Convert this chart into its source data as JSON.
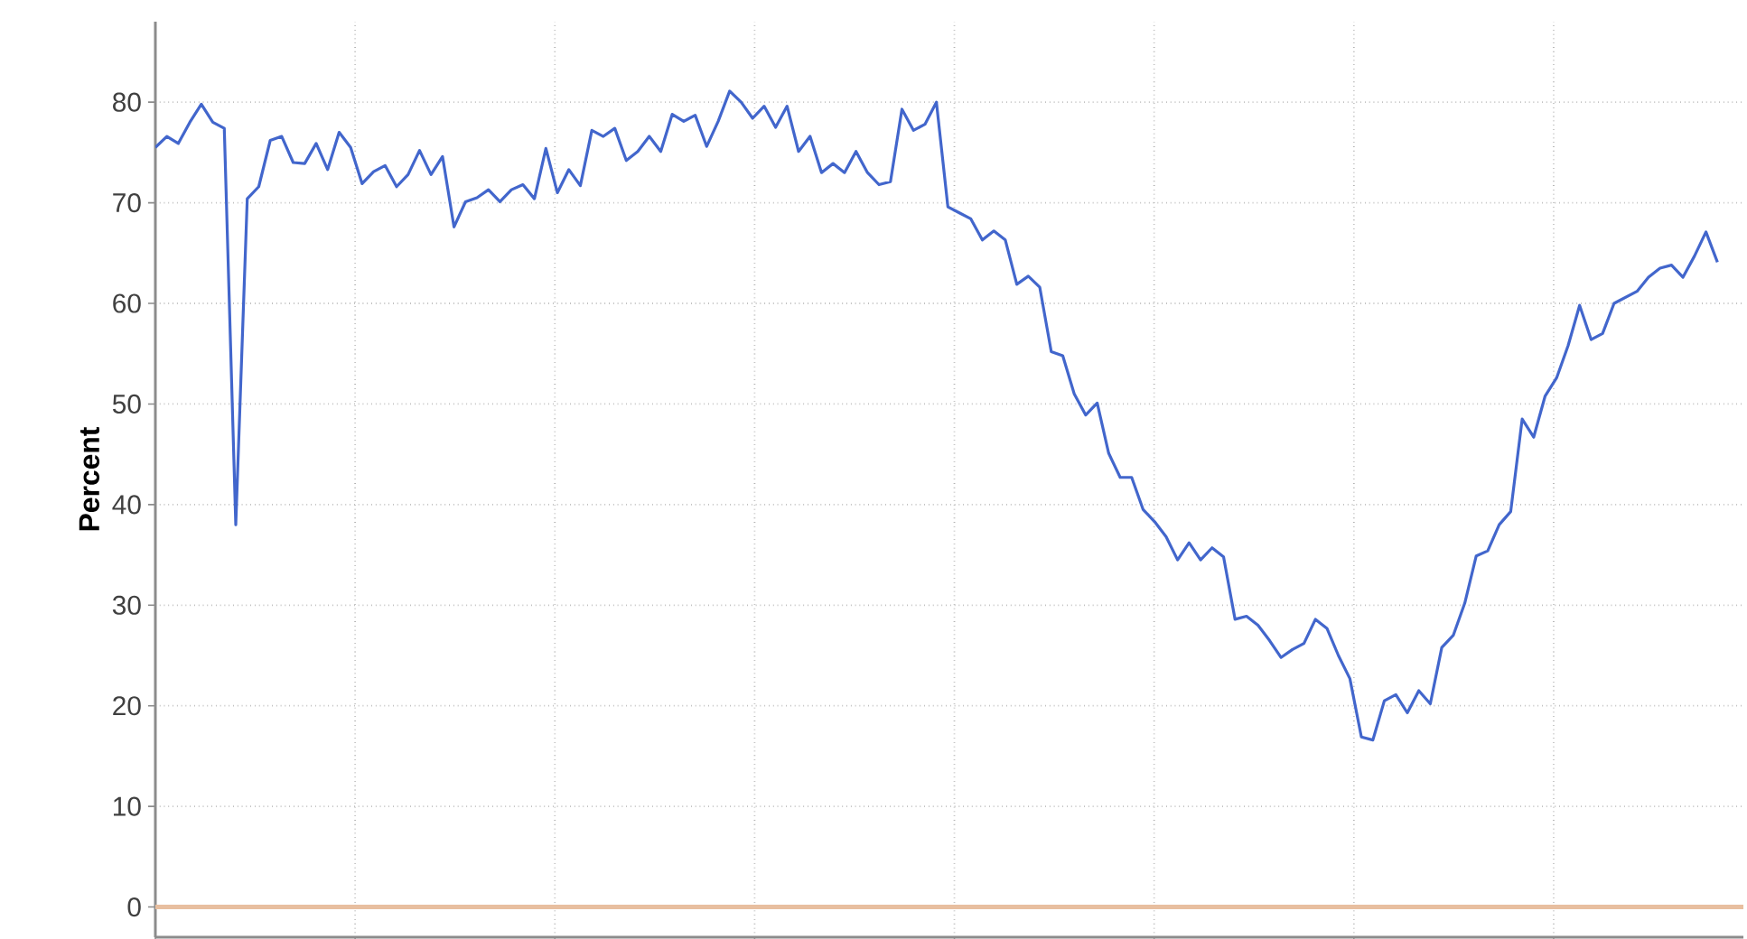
{
  "chart_data": {
    "type": "line",
    "ylabel": "Percent",
    "categories": [
      null,
      null,
      null,
      null,
      null,
      null,
      null,
      null,
      null,
      null,
      null,
      null,
      null,
      null,
      null,
      null,
      null,
      null,
      null,
      null,
      null,
      null,
      null,
      null,
      null,
      null,
      null,
      null,
      null,
      null,
      null,
      null,
      null,
      null,
      null,
      null,
      null,
      null,
      null,
      null,
      null,
      null,
      null,
      null,
      null,
      null,
      null,
      null,
      null,
      null,
      null,
      null,
      null,
      null,
      null,
      null,
      null,
      null,
      null,
      null,
      null,
      null,
      null,
      null,
      null,
      null,
      null,
      null,
      null,
      null,
      null,
      null,
      null,
      null,
      null,
      null,
      null,
      null,
      null,
      null,
      null,
      null,
      null,
      null,
      null,
      null,
      null,
      null,
      null,
      null,
      null,
      null,
      null,
      null,
      null,
      null,
      null,
      null,
      null,
      null,
      null,
      null,
      null,
      null,
      null,
      null,
      null,
      null,
      null,
      null,
      null,
      null,
      null,
      null,
      null,
      null,
      null,
      null,
      null,
      null,
      null,
      null,
      null,
      null,
      null,
      null,
      null,
      null,
      null,
      null,
      null,
      null,
      null,
      null,
      null,
      null,
      null
    ],
    "series": [
      {
        "color": "#4266cc",
        "values": [
          75.5,
          76.6,
          75.9,
          78,
          79.8,
          78,
          77.4,
          38,
          70.4,
          71.6,
          76.2,
          76.6,
          74,
          73.9,
          75.9,
          73.3,
          77,
          75.5,
          71.9,
          73.1,
          73.7,
          71.6,
          72.8,
          75.2,
          72.8,
          74.6,
          67.6,
          70.1,
          70.5,
          71.3,
          70.1,
          71.3,
          71.8,
          70.4,
          75.4,
          71,
          73.3,
          71.7,
          77.2,
          76.6,
          77.4,
          74.2,
          75.1,
          76.6,
          75.1,
          78.8,
          78.1,
          78.7,
          75.6,
          78.1,
          81.1,
          80,
          78.4,
          79.6,
          77.5,
          79.6,
          75.1,
          76.6,
          73,
          73.9,
          73,
          75.1,
          73,
          71.8,
          72.1,
          79.3,
          77.2,
          77.8,
          80,
          69.6,
          69,
          68.4,
          66.3,
          67.2,
          66.3,
          61.9,
          62.7,
          61.6,
          55.2,
          54.8,
          51,
          48.9,
          50.1,
          45.1,
          42.7,
          42.7,
          39.5,
          38.3,
          36.8,
          34.5,
          36.2,
          34.5,
          35.7,
          34.8,
          28.6,
          28.9,
          28,
          26.5,
          24.8,
          25.6,
          26.2,
          28.6,
          27.7,
          25,
          22.7,
          16.9,
          16.6,
          20.5,
          21.1,
          19.3,
          21.5,
          20.2,
          25.8,
          27,
          30.2,
          34.9,
          35.4,
          38,
          39.3,
          48.5,
          46.7,
          50.8,
          52.6,
          55.8,
          59.8,
          56.4,
          57,
          60,
          60.6,
          61.2,
          62.6,
          63.5,
          63.8,
          62.6,
          64.7,
          67.1,
          64.1
        ]
      }
    ],
    "ylim": [
      -3,
      88
    ],
    "yticks": [
      0,
      10,
      20,
      30,
      40,
      50,
      60,
      70,
      80
    ],
    "grid": true,
    "ref_lines": [
      {
        "axis": "y",
        "value": 0,
        "color": "#e8bfa0"
      }
    ]
  }
}
